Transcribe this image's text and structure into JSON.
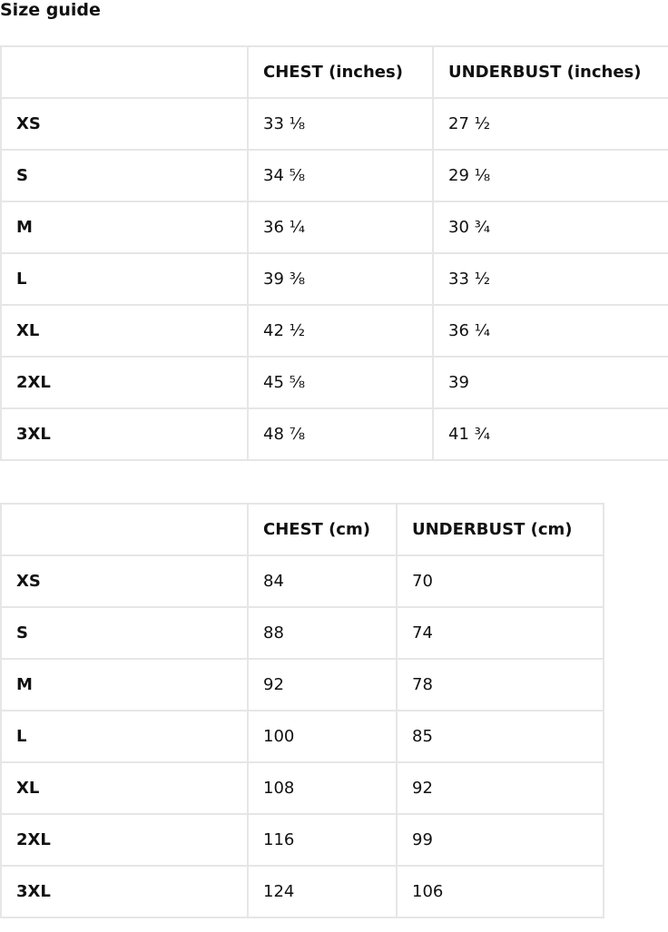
{
  "title": "Size guide",
  "tables": [
    {
      "headers": [
        "",
        "CHEST (inches)",
        "UNDERBUST (inches)"
      ],
      "rows": [
        [
          "XS",
          "33 ⅛",
          "27 ½"
        ],
        [
          "S",
          "34 ⅝",
          "29 ⅛"
        ],
        [
          "M",
          "36 ¼",
          "30 ¾"
        ],
        [
          "L",
          "39 ⅜",
          "33 ½"
        ],
        [
          "XL",
          "42 ½",
          "36 ¼"
        ],
        [
          "2XL",
          "45 ⅝",
          "39"
        ],
        [
          "3XL",
          "48 ⅞",
          "41 ¾"
        ]
      ]
    },
    {
      "headers": [
        "",
        "CHEST (cm)",
        "UNDERBUST (cm)"
      ],
      "rows": [
        [
          "XS",
          "84",
          "70"
        ],
        [
          "S",
          "88",
          "74"
        ],
        [
          "M",
          "92",
          "78"
        ],
        [
          "L",
          "100",
          "85"
        ],
        [
          "XL",
          "108",
          "92"
        ],
        [
          "2XL",
          "116",
          "99"
        ],
        [
          "3XL",
          "124",
          "106"
        ]
      ]
    }
  ]
}
